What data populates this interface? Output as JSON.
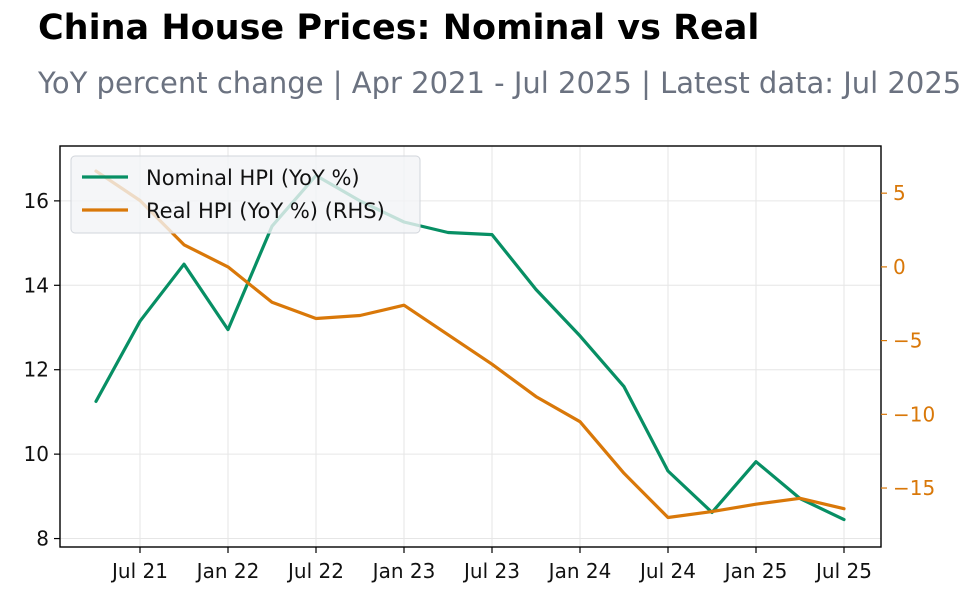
{
  "title": "China House Prices: Nominal vs Real",
  "subtitle": "YoY percent change | Apr 2021 - Jul 2025 | Latest data: Jul 2025",
  "colors": {
    "nominal": "#078f64",
    "real": "#d97809",
    "right_axis": "#d97809",
    "grid": "#e6e6e6",
    "subtitle": "#6b7280"
  },
  "chart_data": {
    "type": "line",
    "x": [
      "2021-04",
      "2021-07",
      "2021-10",
      "2022-01",
      "2022-04",
      "2022-07",
      "2022-10",
      "2023-01",
      "2023-04",
      "2023-07",
      "2023-10",
      "2024-01",
      "2024-04",
      "2024-07",
      "2024-10",
      "2025-01",
      "2025-04",
      "2025-07"
    ],
    "x_tick_labels": [
      "Jul 21",
      "Jan 22",
      "Jul 22",
      "Jan 23",
      "Jul 23",
      "Jan 24",
      "Jul 24",
      "Jan 25",
      "Jul 25"
    ],
    "x_tick_dates": [
      "2021-07",
      "2022-01",
      "2022-07",
      "2023-01",
      "2023-07",
      "2024-01",
      "2024-07",
      "2025-01",
      "2025-07"
    ],
    "series": [
      {
        "name": "Nominal HPI (YoY %)",
        "axis": "left",
        "values": [
          11.25,
          13.15,
          14.5,
          12.95,
          15.4,
          16.6,
          16.0,
          15.5,
          15.25,
          15.2,
          13.9,
          12.8,
          11.6,
          9.6,
          8.62,
          9.82,
          8.95,
          8.45
        ]
      },
      {
        "name": "Real HPI (YoY %) (RHS)",
        "axis": "right",
        "values": [
          6.5,
          4.5,
          1.5,
          0.0,
          -2.4,
          -3.5,
          -3.3,
          -2.6,
          -4.6,
          -6.6,
          -8.8,
          -10.5,
          -14.0,
          -17.0,
          -16.6,
          -16.1,
          -15.7,
          -16.4
        ]
      }
    ],
    "y_left": {
      "ylim": [
        7.8,
        17.3
      ],
      "ticks": [
        8,
        10,
        12,
        14,
        16
      ]
    },
    "y_right": {
      "ylim": [
        -19.0,
        8.2
      ],
      "ticks": [
        5,
        0,
        -5,
        -10,
        -15
      ]
    },
    "grid": true,
    "legend_position": "top-left"
  }
}
